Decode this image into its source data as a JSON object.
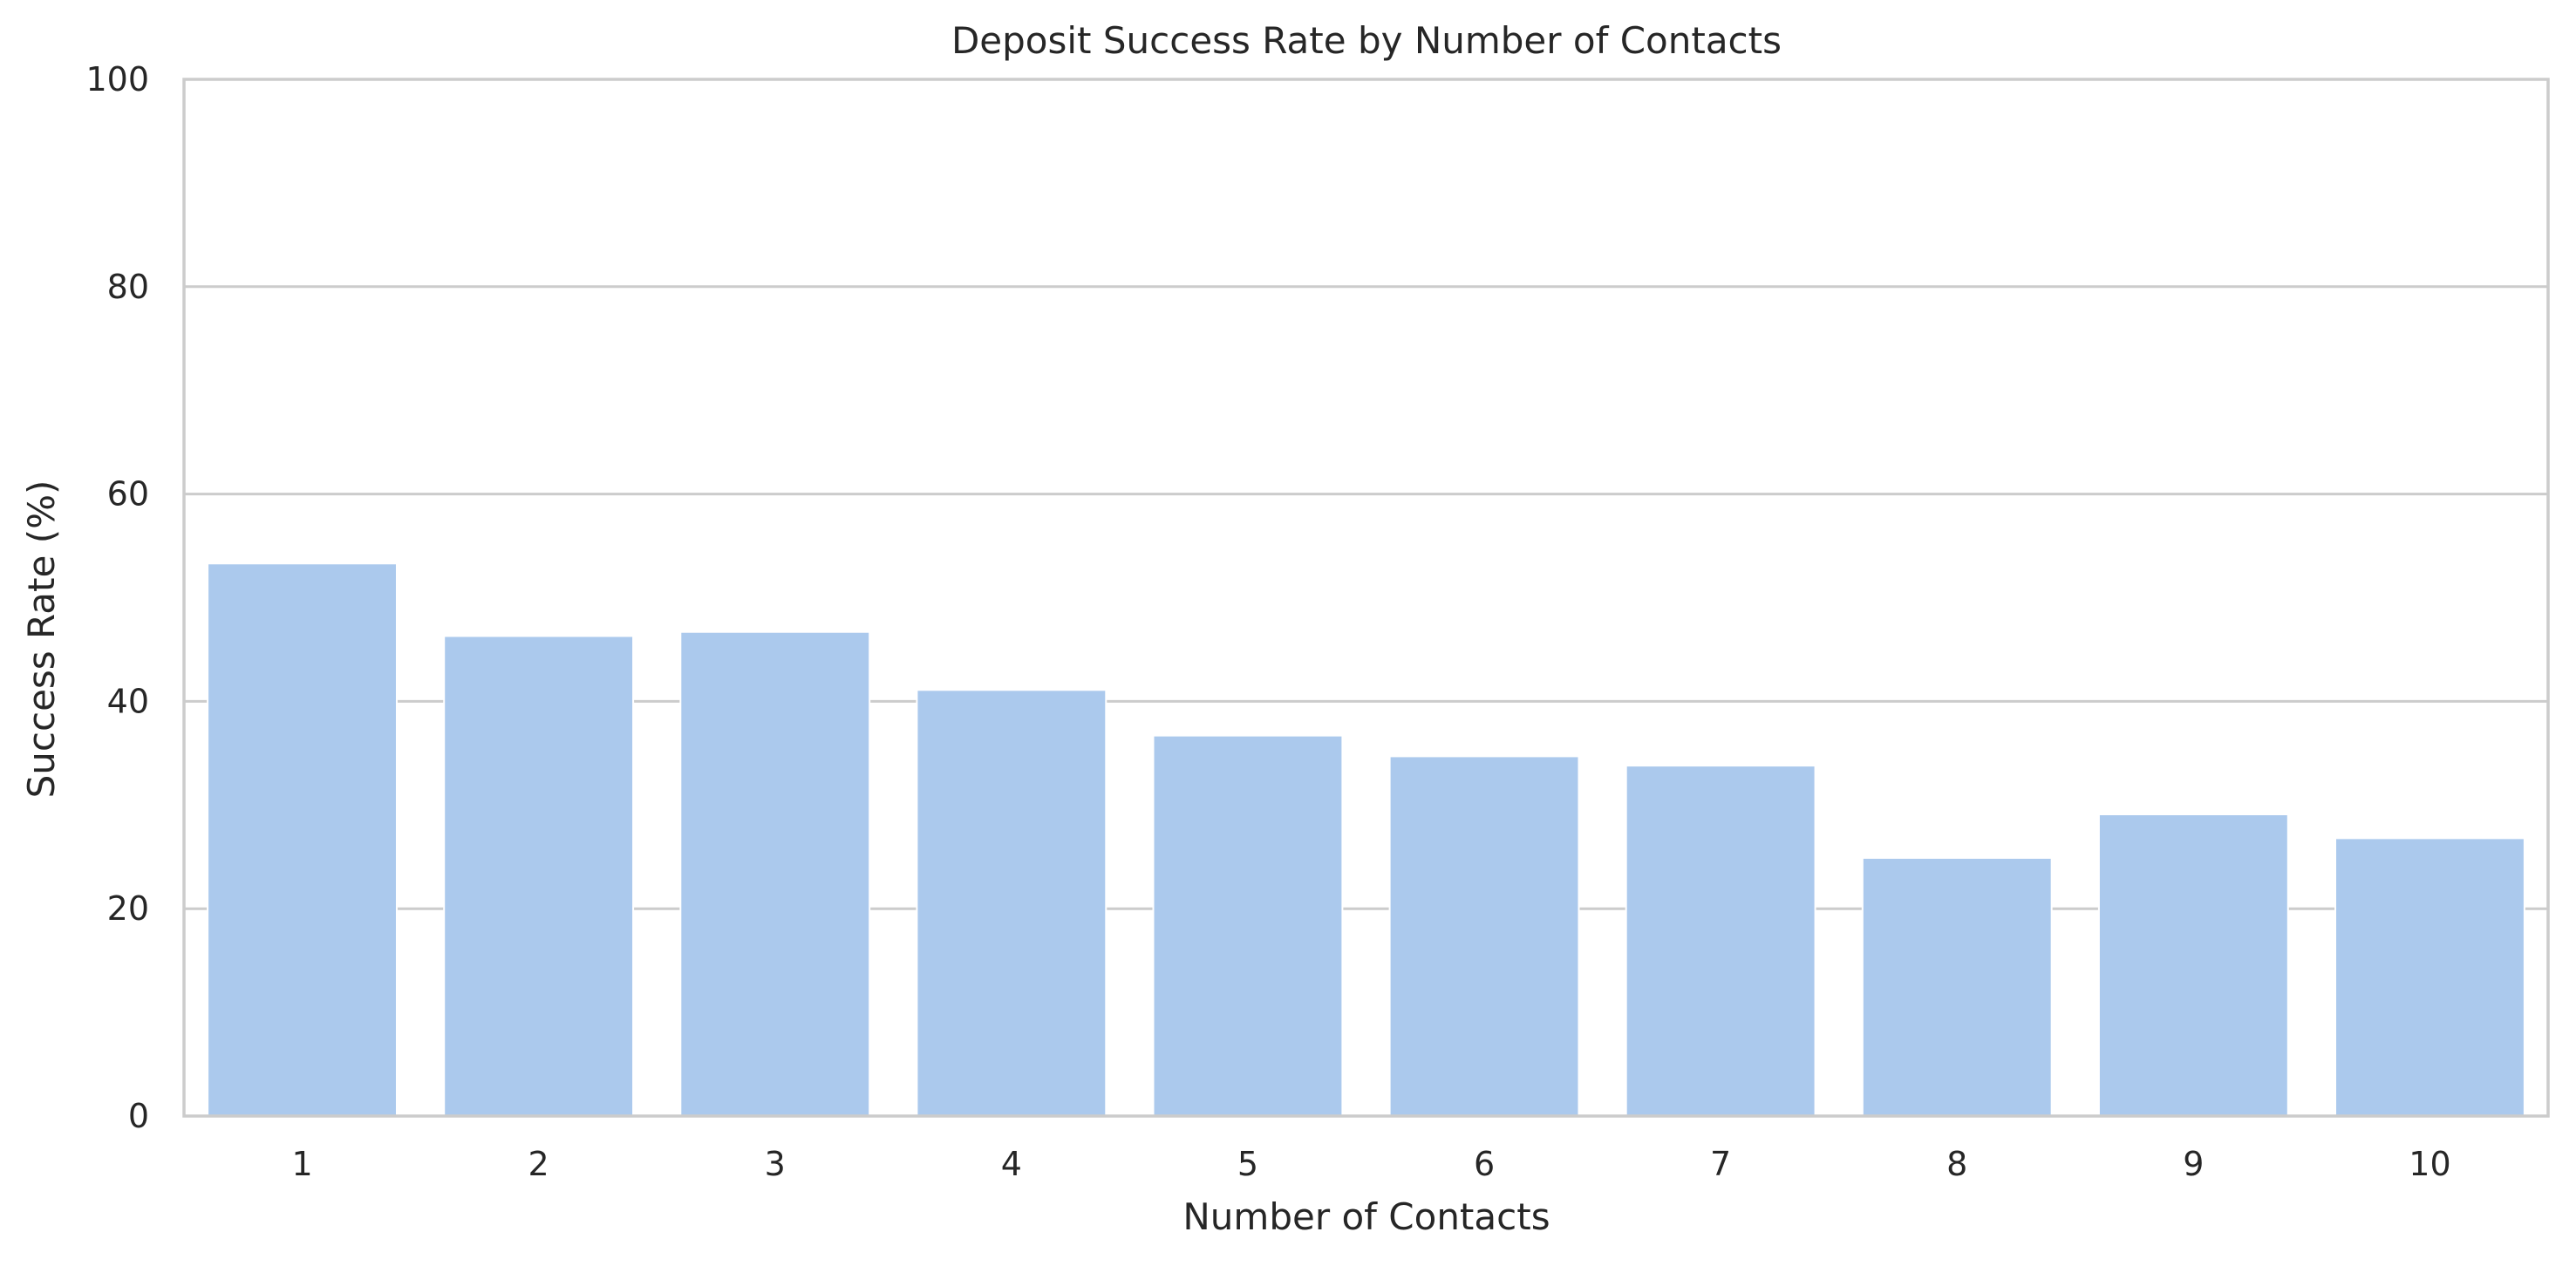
{
  "chart_data": {
    "type": "bar",
    "title": "Deposit Success Rate by Number of Contacts",
    "xlabel": "Number of Contacts",
    "ylabel": "Success Rate (%)",
    "categories": [
      "1",
      "2",
      "3",
      "4",
      "5",
      "6",
      "7",
      "8",
      "9",
      "10"
    ],
    "values": [
      53.3,
      46.3,
      46.7,
      41.1,
      36.7,
      34.7,
      33.8,
      24.9,
      29.1,
      26.8
    ],
    "ylim": [
      0,
      100
    ],
    "yticks": [
      "0",
      "20",
      "40",
      "60",
      "80",
      "100"
    ],
    "grid": true,
    "bar_color": "#abc9ed",
    "grid_color": "#cccccc"
  }
}
